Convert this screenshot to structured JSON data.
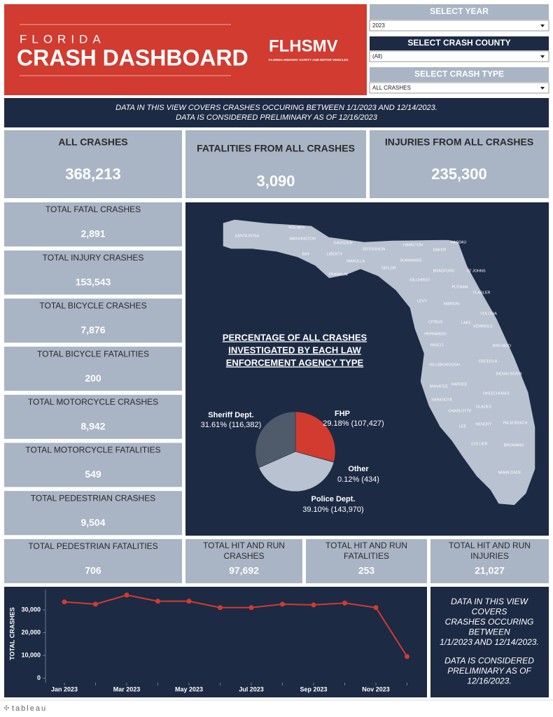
{
  "header": {
    "kicker": "FLORIDA",
    "title": "CRASH DASHBOARD",
    "logo": "FLHSMV",
    "logo_sub": "FLORIDA HIGHWAY SAFETY AND MOTOR VEHICLES"
  },
  "filters": [
    {
      "label": "SELECT YEAR",
      "value": "2023"
    },
    {
      "label": "SELECT CRASH COUNTY",
      "value": "(All)"
    },
    {
      "label": "SELECT CRASH TYPE",
      "value": "ALL CRASHES"
    }
  ],
  "banner": [
    "DATA IN THIS VIEW COVERS CRASHES OCCURING BETWEEN 1/1/2023 AND 12/14/2023.",
    "DATA IS CONSIDERED PRELIMINARY AS OF 12/16/2023"
  ],
  "summary": [
    {
      "label": "ALL CRASHES",
      "value": "368,213"
    },
    {
      "label": "FATALITIES FROM ALL CRASHES",
      "value": "3,090"
    },
    {
      "label": "INJURIES FROM ALL CRASHES",
      "value": "235,300"
    }
  ],
  "kpis": [
    {
      "label": [
        "TOTAL FATAL CRASHES"
      ],
      "value": "2,891"
    },
    {
      "label": [
        "TOTAL INJURY CRASHES"
      ],
      "value": "153,543"
    },
    {
      "label": [
        "TOTAL BICYCLE CRASHES"
      ],
      "value": "7,876"
    },
    {
      "label": [
        "TOTAL BICYCLE FATALITIES"
      ],
      "value": "200"
    },
    {
      "label": [
        "TOTAL MOTORCYCLE CRASHES"
      ],
      "value": "8,942"
    },
    {
      "label": [
        "TOTAL MOTORCYCLE FATALITIES"
      ],
      "value": "549"
    },
    {
      "label": [
        "TOTAL PEDESTRIAN CRASHES"
      ],
      "value": "9,504"
    },
    {
      "label": [
        "TOTAL PEDESTRIAN FATALITIES"
      ],
      "value": "706"
    },
    {
      "label": [
        "TOTAL HIT AND RUN",
        "CRASHES"
      ],
      "value": "97,692"
    },
    {
      "label": [
        "TOTAL HIT AND RUN",
        "FATALITIES"
      ],
      "value": "253"
    },
    {
      "label": [
        "TOTAL HIT AND RUN",
        "INJURIES"
      ],
      "value": "21,027"
    }
  ],
  "map": {
    "labels": [
      "SANTA ROSA",
      "HOLMES",
      "WASHINGTON",
      "GADSDEN",
      "BAY",
      "LIBERTY",
      "JEFFERSON",
      "HAMILTON",
      "NASSAU",
      "BAKER",
      "SUWANNEE",
      "WAKULLA",
      "TAYLOR",
      "FRANKLIN",
      "BRADFORD",
      "ST JOHNS",
      "GILCHRIST",
      "PUTNAM",
      "FLAGLER",
      "LEVY",
      "MARION",
      "VOLUSIA",
      "CITRUS",
      "LAKE",
      "SEMINOLE",
      "HERNANDO",
      "BREVARD",
      "PASCO",
      "OSCEOLA",
      "HILLSBOROUGH",
      "INDIAN RIVER",
      "MANATEE",
      "HARDEE",
      "OKEECHOBEE",
      "SARASOTA",
      "CHARLOTTE",
      "GLADES",
      "LEE",
      "HENDRY",
      "PALM BEACH",
      "COLLIER",
      "BROWARD",
      "MIAMI-DADE"
    ]
  },
  "chart_data": [
    {
      "type": "pie",
      "title": [
        "PERCENTAGE OF ALL CRASHES",
        "INVESTIGATED BY EACH LAW",
        "ENFORCEMENT AGENCY TYPE"
      ],
      "categories": [
        "FHP",
        "Other",
        "Police Dept.",
        "Sheriff Dept."
      ],
      "values": [
        29.18,
        0.12,
        39.1,
        31.61
      ],
      "value_labels": [
        "29.18% (107,427)",
        "0.12% (434)",
        "39.10% (143,970)",
        "31.61% (116,382)"
      ],
      "colors": [
        "#d13b30",
        "#4f5a6b",
        "#b8c2d0",
        "#4f5a6b"
      ]
    },
    {
      "type": "line",
      "y_label": "TOTAL CRASHES",
      "categories": [
        "Jan 2023",
        null,
        "Mar 2023",
        null,
        "May 2023",
        null,
        "Jul 2023",
        null,
        "Sep 2023",
        null,
        "Nov 2023",
        null
      ],
      "values": [
        33500,
        32500,
        36500,
        33800,
        33800,
        31000,
        31000,
        32500,
        32200,
        33000,
        31000,
        9500
      ],
      "color": "#d13b30",
      "ylim": [
        -2000,
        38000
      ],
      "yticks": [
        0,
        {
          "value": 10000,
          "label": "10,000"
        },
        {
          "value": 20000,
          "label": "20,000"
        },
        {
          "value": 30000,
          "label": "30,000"
        }
      ]
    }
  ],
  "note": [
    [
      "DATA IN THIS VIEW",
      "COVERS",
      "CRASHES OCCURING",
      "BETWEEN",
      "1/1/2023 AND 12/14/2023."
    ],
    [
      "DATA IS CONSIDERED",
      "PRELIMINARY AS OF",
      "12/16/2023."
    ]
  ],
  "footer": "tableau"
}
